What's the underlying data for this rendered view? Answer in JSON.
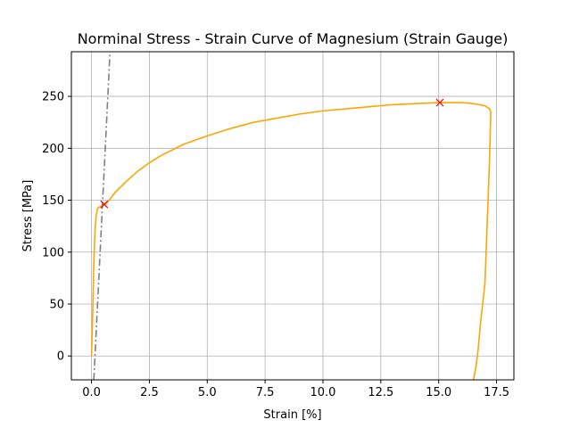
{
  "chart_data": {
    "type": "line",
    "title": "Norminal Stress - Strain Curve of Magnesium (Strain Gauge)",
    "xlabel": "Strain [%]",
    "ylabel": "Stress [MPa]",
    "xlim": [
      -0.87,
      18.25
    ],
    "ylim": [
      -23,
      293
    ],
    "xticks": [
      0.0,
      2.5,
      5.0,
      7.5,
      10.0,
      12.5,
      15.0,
      17.5
    ],
    "xtick_labels": [
      "0.0",
      "2.5",
      "5.0",
      "7.5",
      "10.0",
      "12.5",
      "15.0",
      "17.5"
    ],
    "yticks": [
      0,
      50,
      100,
      150,
      200,
      250
    ],
    "ytick_labels": [
      "0",
      "50",
      "100",
      "150",
      "200",
      "250"
    ],
    "grid": true,
    "colors": {
      "curve": "#ffa500",
      "offset_line": "#808080",
      "markers": "#ff0000"
    },
    "series": [
      {
        "style": "solid",
        "color": "#ffa500",
        "x": [
          0.0,
          0.05,
          0.1,
          0.15,
          0.2,
          0.25,
          0.3,
          0.4,
          0.5,
          0.6,
          0.8,
          1.0,
          1.5,
          2.0,
          2.5,
          3.0,
          4.0,
          5.0,
          6.0,
          7.0,
          8.0,
          9.0,
          10.0,
          11.0,
          12.0,
          13.0,
          14.0,
          15.0,
          15.5,
          16.0,
          16.5,
          17.0,
          17.2,
          17.25,
          17.2,
          17.1,
          17.0,
          16.8,
          16.7,
          16.6,
          16.5
        ],
        "y": [
          0,
          40,
          90,
          120,
          135,
          141,
          143,
          144,
          145,
          146,
          151,
          157,
          168,
          178,
          186,
          193,
          204,
          212,
          219,
          225,
          229,
          233,
          236,
          238,
          240,
          242,
          243,
          244,
          244,
          244,
          243,
          241,
          238,
          235,
          190,
          130,
          70,
          30,
          5,
          -12,
          -23
        ]
      },
      {
        "style": "dashdot",
        "color": "#808080",
        "x": [
          0.1,
          0.8
        ],
        "y": [
          -23,
          293
        ]
      }
    ],
    "markers": [
      {
        "x": 0.55,
        "y": 146,
        "symbol": "x",
        "color": "#ff0000"
      },
      {
        "x": 15.05,
        "y": 244,
        "symbol": "x",
        "color": "#ff0000"
      }
    ]
  }
}
